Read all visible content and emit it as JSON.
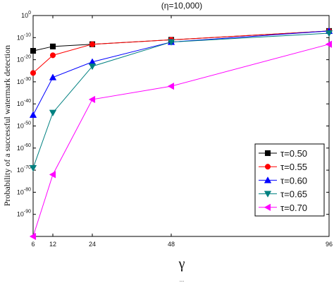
{
  "chart_data": {
    "type": "line",
    "title": "(η=10,000)",
    "xlabel": "γ",
    "ylabel": "Probability of a successful watermark detection",
    "y_scale": "log",
    "xlim": [
      6,
      96
    ],
    "ylim": [
      1e-100,
      1
    ],
    "x_ticks": [
      "6",
      "12",
      "24",
      "48",
      "96"
    ],
    "y_ticks": [
      "10^0",
      "10^-10",
      "10^-20",
      "10^-30",
      "10^-40",
      "10^-50",
      "10^-60",
      "10^-70",
      "10^-80",
      "10^-90"
    ],
    "y_tick_exponents": [
      0,
      -10,
      -20,
      -30,
      -40,
      -50,
      -60,
      -70,
      -80,
      -90
    ],
    "legend_position": "bottom-right",
    "caption": "...",
    "series": [
      {
        "name": "τ=0.50",
        "color": "#000000",
        "marker": "square",
        "x": [
          6,
          12,
          24,
          48,
          96
        ],
        "log10_y": [
          -16,
          -14,
          -13,
          -11,
          -7
        ]
      },
      {
        "name": "τ=0.55",
        "color": "#ff0000",
        "marker": "circle",
        "x": [
          6,
          12,
          24,
          48,
          96
        ],
        "log10_y": [
          -26,
          -18,
          -13,
          -11,
          -7
        ]
      },
      {
        "name": "τ=0.60",
        "color": "#0000ff",
        "marker": "triangle-up",
        "x": [
          6,
          12,
          24,
          48,
          96
        ],
        "log10_y": [
          -45,
          -28,
          -21,
          -12,
          -7
        ]
      },
      {
        "name": "τ=0.65",
        "color": "#008080",
        "marker": "triangle-down",
        "x": [
          6,
          12,
          24,
          48,
          96
        ],
        "log10_y": [
          -69,
          -44,
          -23,
          -12,
          -8
        ]
      },
      {
        "name": "τ=0.70",
        "color": "#ff00ff",
        "marker": "triangle-left",
        "x": [
          6,
          12,
          24,
          48,
          96
        ],
        "log10_y": [
          -100,
          -72,
          -38,
          -32,
          -13
        ]
      }
    ]
  }
}
